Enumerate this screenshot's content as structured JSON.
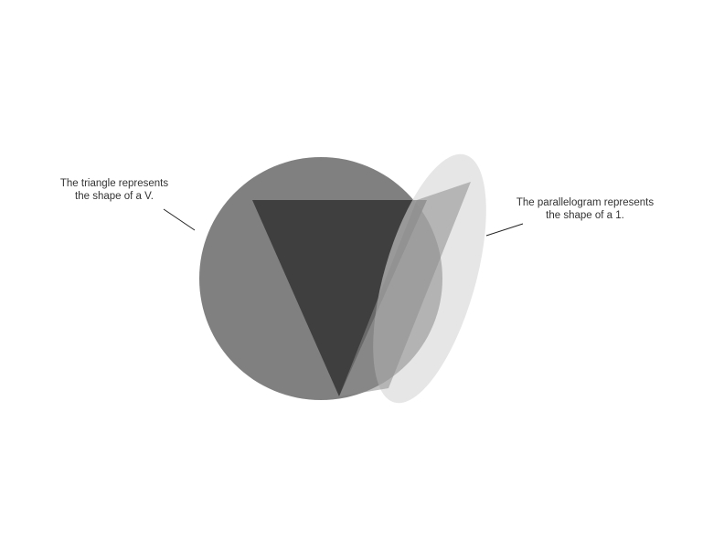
{
  "labels": {
    "triangle": {
      "line1": "The triangle represents",
      "line2": "the shape of a V."
    },
    "parallelogram": {
      "line1": "The parallelogram represents",
      "line2": "the shape of a 1."
    }
  },
  "colors": {
    "circle": "#6e6e6e",
    "triangle": "#3a3a3a",
    "ellipse": "#d6d6d6",
    "parallelogram": "#8c8c8c",
    "leader_line": "#222222",
    "text": "#333333"
  }
}
